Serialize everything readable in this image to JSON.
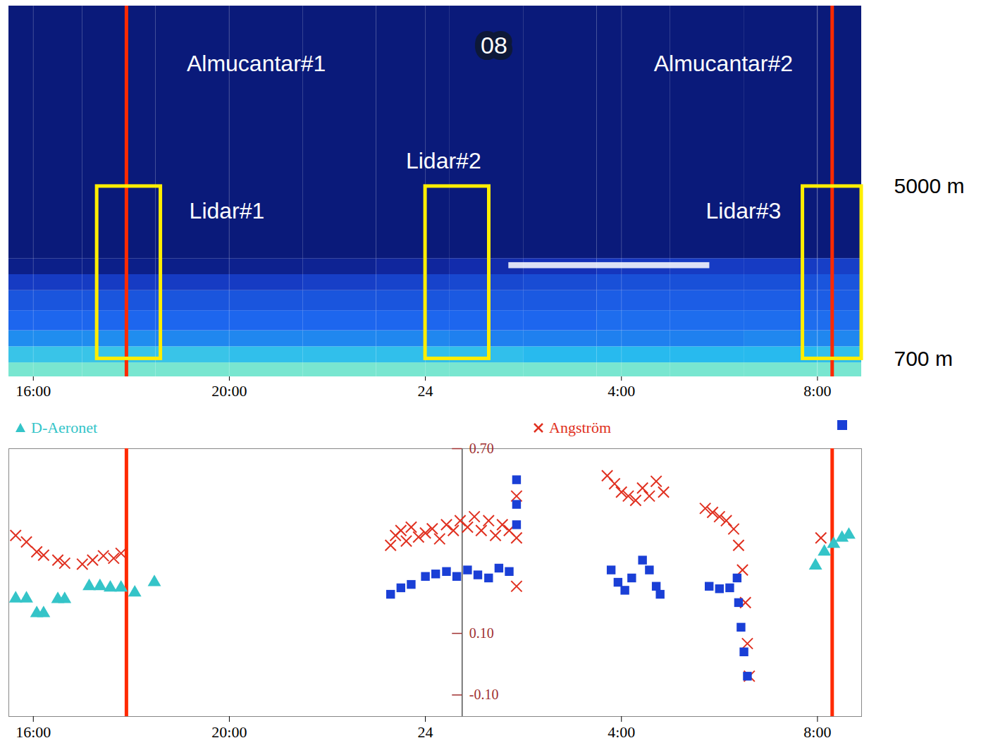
{
  "chart_data": [
    {
      "type": "heatmap",
      "xlim": [
        15.5,
        32.9
      ],
      "xticks": [
        {
          "value": 16,
          "label": "16:00"
        },
        {
          "value": 20,
          "label": "20:00"
        },
        24,
        {
          "value": 28,
          "label": "4:00"
        },
        {
          "value": 32,
          "label": "8:00"
        }
      ],
      "ylim": [
        250,
        9500
      ],
      "yticks": [
        {
          "value": 5000,
          "label": "5000 m"
        },
        {
          "value": 700,
          "label": "700 m"
        }
      ],
      "grid": true,
      "backscatter": {
        "x_edges": [
          15.5,
          17,
          18.5,
          20,
          21.5,
          23,
          24.5,
          26,
          27.5,
          29,
          30.5,
          32,
          32.9
        ],
        "altitude_edges": [
          250,
          600,
          1000,
          1400,
          1900,
          2400,
          2800,
          3200,
          9500
        ],
        "values": [
          [
            0.95,
            0.95,
            0.95,
            0.95,
            0.95,
            0.95,
            0.95,
            0.95,
            0.95,
            0.95,
            0.95,
            0.95
          ],
          [
            0.8,
            0.8,
            0.8,
            0.78,
            0.78,
            0.78,
            0.78,
            0.76,
            0.76,
            0.76,
            0.76,
            0.78
          ],
          [
            0.62,
            0.62,
            0.6,
            0.6,
            0.6,
            0.6,
            0.58,
            0.58,
            0.58,
            0.58,
            0.6,
            0.6
          ],
          [
            0.5,
            0.5,
            0.5,
            0.5,
            0.5,
            0.5,
            0.5,
            0.5,
            0.52,
            0.52,
            0.52,
            0.52
          ],
          [
            0.42,
            0.42,
            0.42,
            0.42,
            0.42,
            0.42,
            0.44,
            0.44,
            0.46,
            0.46,
            0.46,
            0.46
          ],
          [
            0.3,
            0.3,
            0.3,
            0.3,
            0.32,
            0.34,
            0.36,
            0.38,
            0.4,
            0.4,
            0.4,
            0.42
          ],
          [
            0.06,
            0.06,
            0.06,
            0.08,
            0.1,
            0.14,
            0.2,
            0.24,
            0.28,
            0.3,
            0.3,
            0.32
          ],
          [
            0,
            0,
            0,
            0,
            0,
            0,
            0,
            0,
            0,
            0,
            0,
            0
          ]
        ],
        "color_range": [
          0,
          1
        ],
        "colors": [
          "#0a1a7a",
          "#1430b8",
          "#1d66ee",
          "#24b8f0",
          "#8ef2c8"
        ]
      },
      "cloud": {
        "x": [
          25.7,
          29.8
        ],
        "altitude": [
          2950,
          3100
        ],
        "color": "#ffffff"
      },
      "lines": [
        {
          "label": "Almucantar#1",
          "x": 17.9,
          "color": "#ff2a00",
          "label_x": 20.55,
          "label_y": 8050
        },
        {
          "label": "Almucantar#2",
          "x": 32.3,
          "color": "#ff2a00",
          "label_x": 30.08,
          "label_y": 8050
        }
      ],
      "boxes": [
        {
          "label": "Lidar#1",
          "x": [
            17.3,
            18.6
          ],
          "altitude": [
            700,
            5000
          ],
          "color": "#ffee00",
          "label_x": 19.95,
          "label_y": 4370
        },
        {
          "label": "Lidar#2",
          "x": [
            24.0,
            25.3
          ],
          "altitude": [
            700,
            5000
          ],
          "color": "#ffee00",
          "label_x": 24.37,
          "label_y": 5630
        },
        {
          "label": "Lidar#3",
          "x": [
            31.7,
            32.9
          ],
          "altitude": [
            700,
            5000
          ],
          "color": "#ffee00",
          "label_x": 30.49,
          "label_y": 4370
        }
      ],
      "annotations": [
        {
          "text": "08",
          "x": 25.4,
          "y": 8500
        }
      ]
    },
    {
      "type": "scatter",
      "xlim": [
        15.5,
        32.9
      ],
      "xticks": [
        {
          "value": 16,
          "label": "16:00"
        },
        {
          "value": 20,
          "label": "20:00"
        },
        24,
        {
          "value": 28,
          "label": "4:00"
        },
        {
          "value": 32,
          "label": "8:00"
        }
      ],
      "ylim": [
        -0.17,
        0.7
      ],
      "yticks": [
        {
          "value": 0.7,
          "label": "0.70"
        },
        {
          "value": 0.1,
          "label": "0.10"
        },
        {
          "value": -0.1,
          "label": "-0.10"
        }
      ],
      "y_axis_at": 24.75,
      "grid": false,
      "legend": "top",
      "series": [
        {
          "name": "D-Aeronet",
          "color": "#34c4c8",
          "marker": "triangle",
          "x": [
            15.64,
            15.86,
            16.07,
            16.21,
            16.5,
            16.64,
            17.14,
            17.36,
            17.57,
            17.79,
            18.07,
            18.47,
            31.96,
            32.14,
            32.33,
            32.5,
            32.64
          ],
          "values": [
            0.213,
            0.213,
            0.165,
            0.165,
            0.211,
            0.211,
            0.253,
            0.253,
            0.248,
            0.248,
            0.232,
            0.266,
            0.32,
            0.365,
            0.39,
            0.41,
            0.42
          ]
        },
        {
          "name": "Angström",
          "color": "#e03020",
          "marker": "times",
          "x": [
            15.64,
            15.86,
            16.07,
            16.21,
            16.5,
            16.64,
            17.0,
            17.21,
            17.43,
            17.64,
            17.79,
            23.29,
            23.39,
            23.5,
            23.61,
            23.71,
            23.86,
            24.0,
            24.14,
            24.29,
            24.43,
            24.57,
            24.71,
            24.86,
            25.0,
            25.14,
            25.29,
            25.43,
            25.57,
            25.71,
            25.86,
            25.86,
            25.86,
            27.71,
            27.86,
            28.0,
            28.14,
            28.29,
            28.43,
            28.57,
            28.71,
            28.86,
            29.71,
            29.86,
            30.0,
            30.14,
            30.29,
            30.39,
            30.47,
            30.53,
            30.57,
            30.61,
            32.07
          ],
          "values": [
            0.418,
            0.397,
            0.365,
            0.354,
            0.338,
            0.328,
            0.325,
            0.338,
            0.352,
            0.344,
            0.36,
            0.386,
            0.418,
            0.434,
            0.4,
            0.445,
            0.413,
            0.426,
            0.44,
            0.407,
            0.453,
            0.434,
            0.466,
            0.445,
            0.479,
            0.434,
            0.466,
            0.418,
            0.453,
            0.434,
            0.546,
            0.41,
            0.253,
            0.612,
            0.586,
            0.559,
            0.546,
            0.532,
            0.572,
            0.546,
            0.594,
            0.559,
            0.506,
            0.493,
            0.479,
            0.466,
            0.439,
            0.386,
            0.306,
            0.2,
            0.067,
            -0.039,
            0.41
          ]
        },
        {
          "name": null,
          "color": "#1a3fd6",
          "marker": "square",
          "x": [
            23.29,
            23.5,
            23.71,
            24.0,
            24.21,
            24.43,
            24.64,
            24.86,
            25.07,
            25.29,
            25.5,
            25.71,
            25.86,
            25.86,
            25.86,
            27.79,
            27.93,
            28.07,
            28.21,
            28.43,
            28.57,
            28.71,
            28.79,
            29.79,
            30.0,
            30.21,
            30.36,
            30.39,
            30.44,
            30.5,
            30.57
          ],
          "values": [
            0.227,
            0.248,
            0.259,
            0.285,
            0.293,
            0.301,
            0.285,
            0.306,
            0.29,
            0.28,
            0.312,
            0.301,
            0.519,
            0.599,
            0.453,
            0.306,
            0.266,
            0.24,
            0.28,
            0.338,
            0.306,
            0.253,
            0.227,
            0.253,
            0.245,
            0.248,
            0.28,
            0.2,
            0.12,
            0.04,
            -0.039
          ]
        }
      ]
    }
  ]
}
